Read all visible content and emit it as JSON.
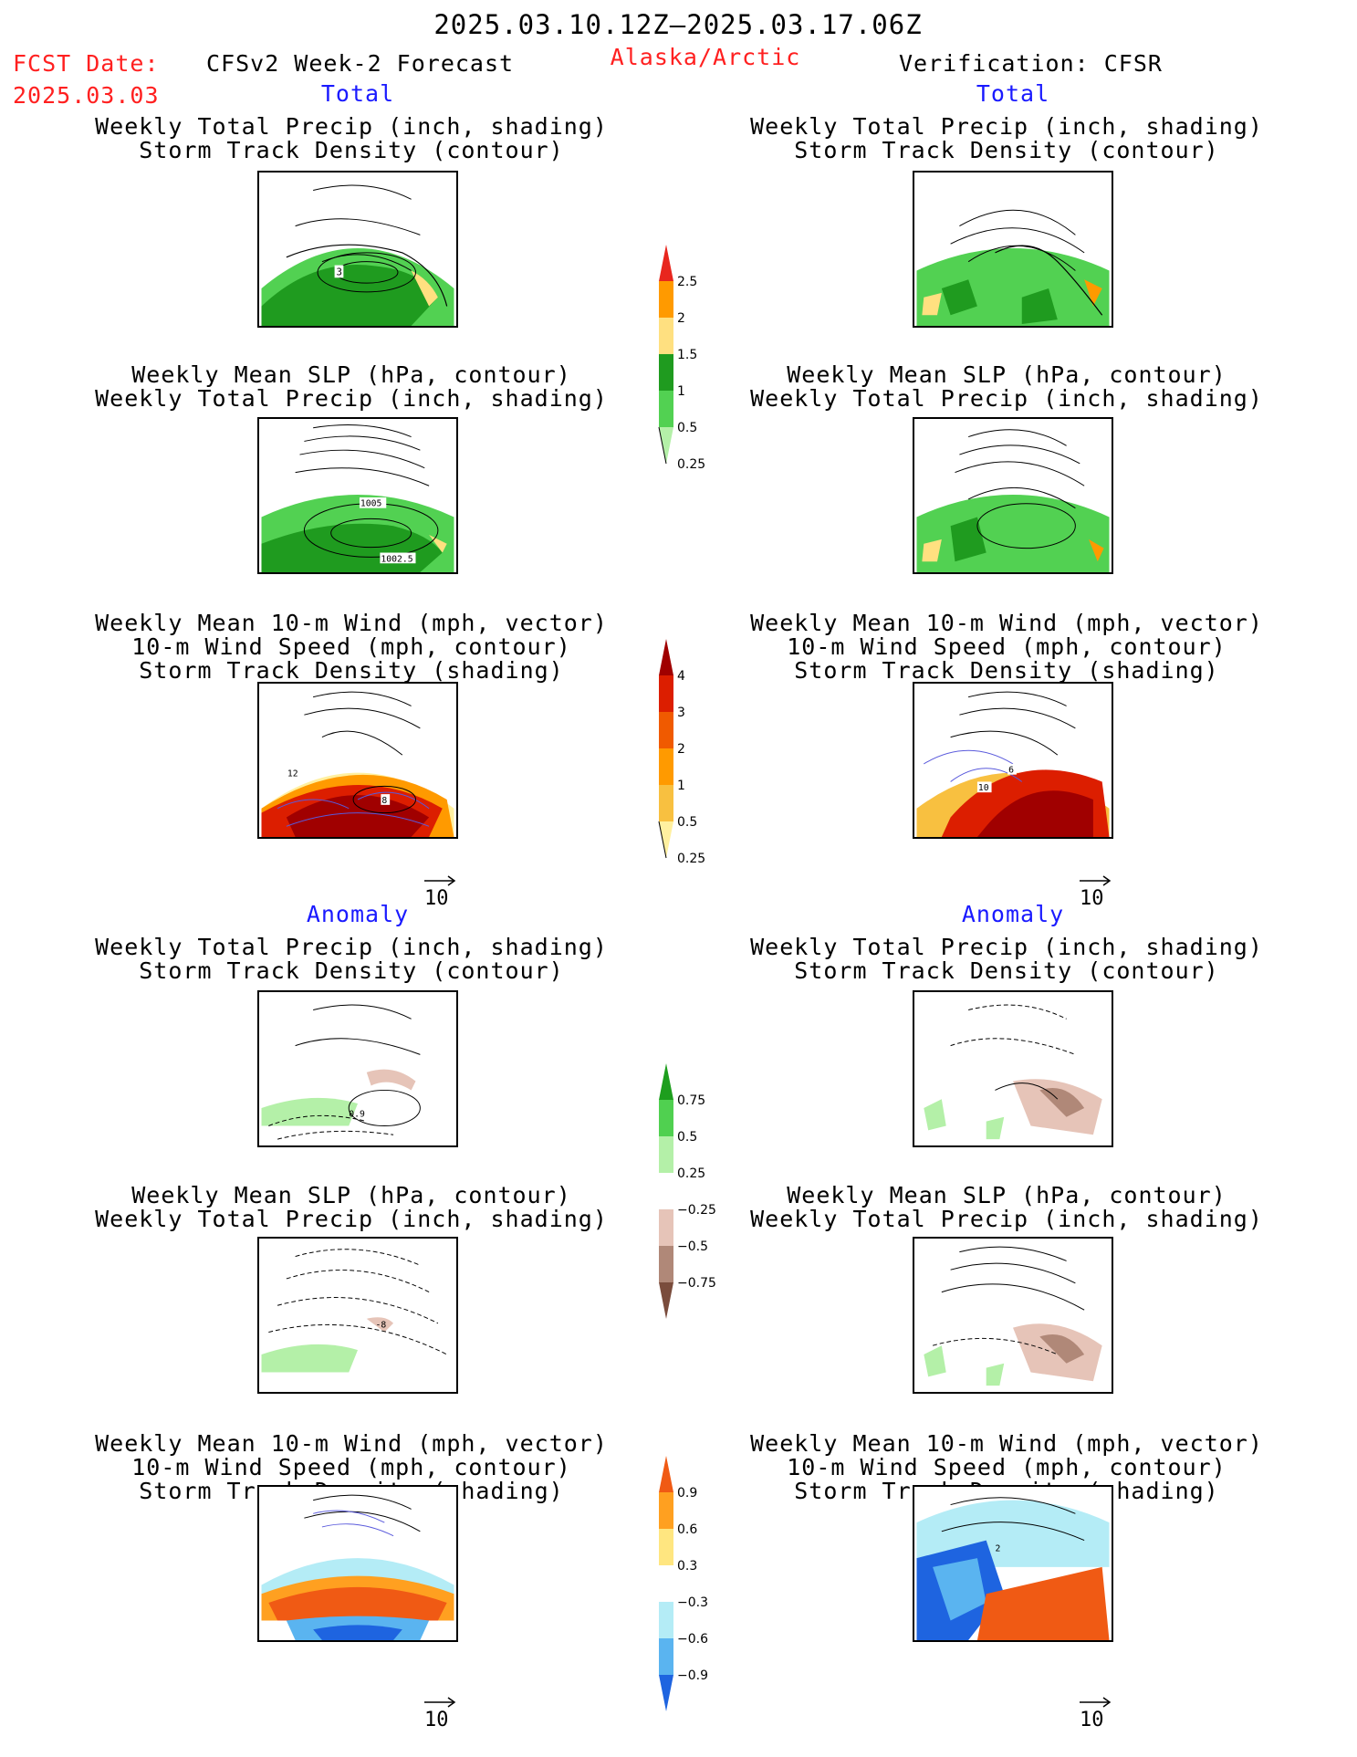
{
  "header": {
    "date_range": "2025.03.10.12Z–2025.03.17.06Z",
    "fcst_label": "FCST Date:",
    "fcst_date": "2025.03.03",
    "left_title": "CFSv2 Week-2 Forecast",
    "region": "Alaska/Arctic",
    "right_title": "Verification: CFSR"
  },
  "sections": {
    "total": "Total",
    "anomaly": "Anomaly"
  },
  "captions": {
    "precip_track": [
      "Weekly Total Precip (inch, shading)",
      "Storm Track Density (contour)"
    ],
    "slp_precip": [
      "Weekly Mean SLP (hPa, contour)",
      "Weekly Total Precip (inch, shading)"
    ],
    "wind_track": [
      "Weekly Mean 10-m Wind (mph, vector)",
      "10-m Wind Speed (mph, contour)",
      "Storm Track Density (shading)"
    ]
  },
  "contour_labels": {
    "total_precip_left": "3",
    "total_slp_left_a": "1005",
    "total_slp_left_b": "1002.5",
    "total_wind_left_a": "12",
    "total_wind_left_b": "8",
    "total_wind_right_a": "6",
    "total_wind_right_b": "10",
    "anom_precip_left": "0.9",
    "anom_slp_left": "-8",
    "anom_wind_right": "2"
  },
  "ref_vector": "10",
  "colorbars": {
    "precip_total": {
      "ticks": [
        "2.5",
        "2",
        "1.5",
        "1",
        "0.5",
        "0.25"
      ],
      "colors": [
        "#e8261e",
        "#ff9a00",
        "#ffe080",
        "#1f9b1f",
        "#52d152",
        "#b4f0a8"
      ]
    },
    "track_total": {
      "ticks": [
        "4",
        "3",
        "2",
        "1",
        "0.5",
        "0.25"
      ],
      "colors": [
        "#a00000",
        "#dc1e00",
        "#f05a00",
        "#ff9a00",
        "#f8c040",
        "#fff0a0"
      ]
    },
    "precip_anom": {
      "ticks": [
        "0.75",
        "0.5",
        "0.25",
        "−0.25",
        "−0.5",
        "−0.75"
      ],
      "colors": [
        "#1e9e1e",
        "#50d050",
        "#b4f0a8",
        "#ffffff",
        "#e6c4b8",
        "#b08878",
        "#7a4c3c"
      ]
    },
    "track_anom": {
      "ticks": [
        "0.9",
        "0.6",
        "0.3",
        "−0.3",
        "−0.6",
        "−0.9"
      ],
      "colors": [
        "#f05a14",
        "#ffa020",
        "#ffe680",
        "#ffffff",
        "#b4ecf6",
        "#5ab4f0",
        "#1e64e0"
      ]
    }
  }
}
